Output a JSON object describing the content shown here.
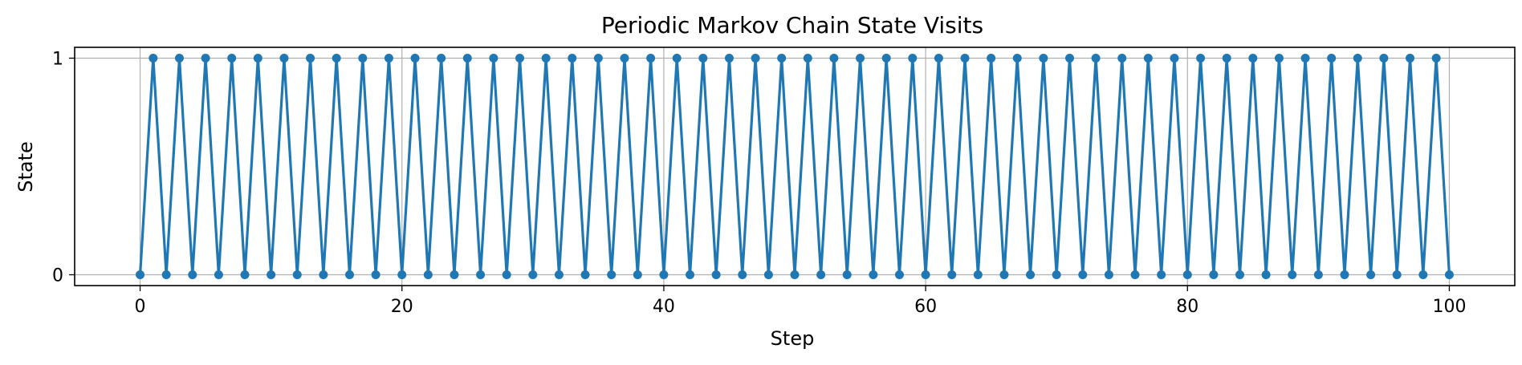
{
  "chart_data": {
    "type": "line",
    "title": "Periodic Markov Chain State Visits",
    "xlabel": "Step",
    "ylabel": "State",
    "xlim": [
      -5,
      105
    ],
    "ylim": [
      -0.05,
      1.05
    ],
    "xticks": [
      0,
      20,
      40,
      60,
      80,
      100
    ],
    "yticks": [
      0,
      1
    ],
    "grid": true,
    "legend": null,
    "series": [
      {
        "color": "#1f77b4",
        "marker": "circle",
        "x": [
          0,
          1,
          2,
          3,
          4,
          5,
          6,
          7,
          8,
          9,
          10,
          11,
          12,
          13,
          14,
          15,
          16,
          17,
          18,
          19,
          20,
          21,
          22,
          23,
          24,
          25,
          26,
          27,
          28,
          29,
          30,
          31,
          32,
          33,
          34,
          35,
          36,
          37,
          38,
          39,
          40,
          41,
          42,
          43,
          44,
          45,
          46,
          47,
          48,
          49,
          50,
          51,
          52,
          53,
          54,
          55,
          56,
          57,
          58,
          59,
          60,
          61,
          62,
          63,
          64,
          65,
          66,
          67,
          68,
          69,
          70,
          71,
          72,
          73,
          74,
          75,
          76,
          77,
          78,
          79,
          80,
          81,
          82,
          83,
          84,
          85,
          86,
          87,
          88,
          89,
          90,
          91,
          92,
          93,
          94,
          95,
          96,
          97,
          98,
          99,
          100
        ],
        "y": [
          0,
          1,
          0,
          1,
          0,
          1,
          0,
          1,
          0,
          1,
          0,
          1,
          0,
          1,
          0,
          1,
          0,
          1,
          0,
          1,
          0,
          1,
          0,
          1,
          0,
          1,
          0,
          1,
          0,
          1,
          0,
          1,
          0,
          1,
          0,
          1,
          0,
          1,
          0,
          1,
          0,
          1,
          0,
          1,
          0,
          1,
          0,
          1,
          0,
          1,
          0,
          1,
          0,
          1,
          0,
          1,
          0,
          1,
          0,
          1,
          0,
          1,
          0,
          1,
          0,
          1,
          0,
          1,
          0,
          1,
          0,
          1,
          0,
          1,
          0,
          1,
          0,
          1,
          0,
          1,
          0,
          1,
          0,
          1,
          0,
          1,
          0,
          1,
          0,
          1,
          0,
          1,
          0,
          1,
          0,
          1,
          0,
          1,
          0,
          1,
          0
        ]
      }
    ]
  }
}
